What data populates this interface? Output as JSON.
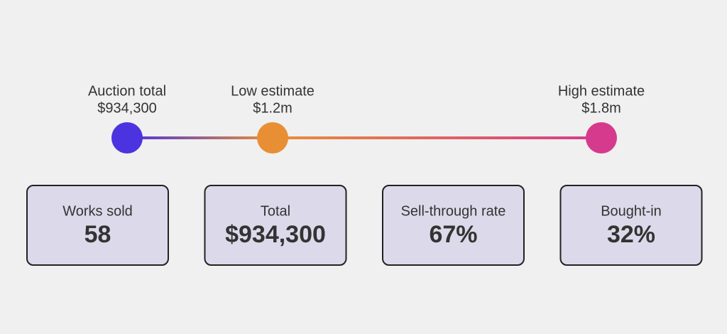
{
  "markers": [
    {
      "name": "Auction total",
      "value": 934300,
      "value_label": "$934,300",
      "color": "#4b33e0"
    },
    {
      "name": "Low estimate",
      "value": 1200000,
      "value_label": "$1.2m",
      "color": "#e88f35"
    },
    {
      "name": "High estimate",
      "value": 1800000,
      "value_label": "$1.8m",
      "color": "#d63a8d"
    }
  ],
  "stats": [
    {
      "label": "Works sold",
      "value": "58"
    },
    {
      "label": "Total",
      "value": "$934,300"
    },
    {
      "label": "Sell-through rate",
      "value": "67%"
    },
    {
      "label": "Bought-in",
      "value": "32%"
    }
  ]
}
